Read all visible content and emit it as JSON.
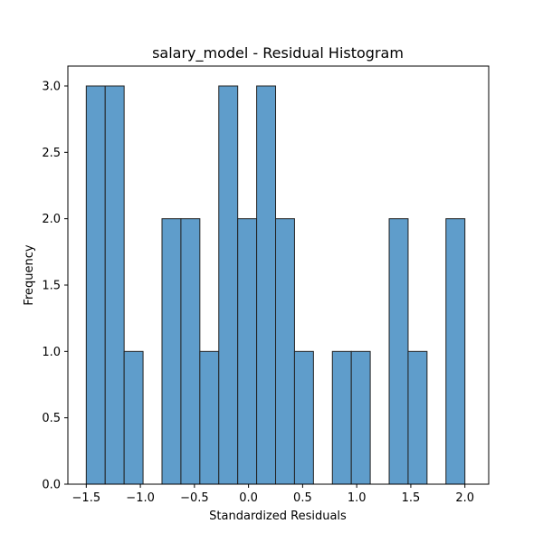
{
  "chart_data": {
    "type": "bar",
    "title": "salary_model - Residual Histogram",
    "xlabel": "Standardized Residuals",
    "ylabel": "Frequency",
    "xlim": [
      -1.67,
      2.22
    ],
    "ylim": [
      0,
      3.15
    ],
    "xticks": [
      -1.5,
      -1.0,
      -0.5,
      0.0,
      0.5,
      1.0,
      1.5,
      2.0
    ],
    "xtick_labels": [
      "−1.5",
      "−1.0",
      "−0.5",
      "0.0",
      "0.5",
      "1.0",
      "1.5",
      "2.0"
    ],
    "yticks": [
      0.0,
      0.5,
      1.0,
      1.5,
      2.0,
      2.5,
      3.0
    ],
    "ytick_labels": [
      "0.0",
      "0.5",
      "1.0",
      "1.5",
      "2.0",
      "2.5",
      "3.0"
    ],
    "grid": false,
    "bar_color": "#5f9dcb",
    "edge_color": "#222222",
    "bins": [
      {
        "start": -1.5,
        "end": -1.325,
        "count": 3
      },
      {
        "start": -1.325,
        "end": -1.15,
        "count": 3
      },
      {
        "start": -1.15,
        "end": -0.975,
        "count": 1
      },
      {
        "start": -0.975,
        "end": -0.8,
        "count": 0
      },
      {
        "start": -0.8,
        "end": -0.625,
        "count": 2
      },
      {
        "start": -0.625,
        "end": -0.45,
        "count": 2
      },
      {
        "start": -0.45,
        "end": -0.275,
        "count": 1
      },
      {
        "start": -0.275,
        "end": -0.1,
        "count": 3
      },
      {
        "start": -0.1,
        "end": 0.075,
        "count": 2
      },
      {
        "start": 0.075,
        "end": 0.25,
        "count": 3
      },
      {
        "start": 0.25,
        "end": 0.425,
        "count": 2
      },
      {
        "start": 0.425,
        "end": 0.6,
        "count": 1
      },
      {
        "start": 0.6,
        "end": 0.775,
        "count": 0
      },
      {
        "start": 0.775,
        "end": 0.95,
        "count": 1
      },
      {
        "start": 0.95,
        "end": 1.125,
        "count": 1
      },
      {
        "start": 1.125,
        "end": 1.3,
        "count": 0
      },
      {
        "start": 1.3,
        "end": 1.475,
        "count": 2
      },
      {
        "start": 1.475,
        "end": 1.65,
        "count": 1
      },
      {
        "start": 1.65,
        "end": 1.825,
        "count": 0
      },
      {
        "start": 1.825,
        "end": 2.0,
        "count": 2
      }
    ]
  }
}
